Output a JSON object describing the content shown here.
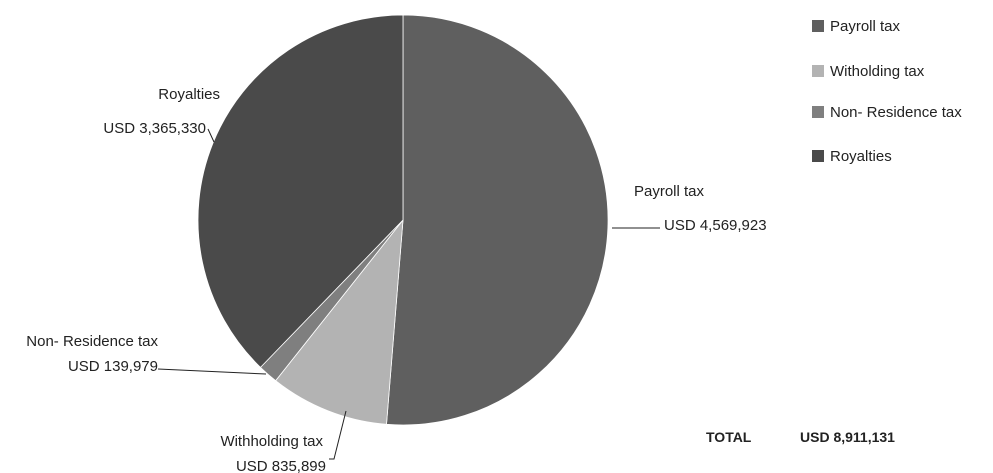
{
  "chart_data": {
    "type": "pie",
    "title": "",
    "slices": [
      {
        "name": "Payroll tax",
        "label": "Payroll tax",
        "value_label": "USD 4,569,923",
        "value": 4569923,
        "color": "#5f5f5f"
      },
      {
        "name": "Witholding tax",
        "label": "Withholding tax",
        "value_label": "USD 835,899",
        "value": 835899,
        "color": "#b3b3b3"
      },
      {
        "name": "Non- Residence tax",
        "label": "Non- Residence tax",
        "value_label": "USD 139,979",
        "value": 139979,
        "color": "#7f7f7f"
      },
      {
        "name": "Royalties",
        "label": "Royalties",
        "value_label": "USD 3,365,330",
        "value": 3365330,
        "color": "#4a4a4a"
      }
    ],
    "legend_position": "top-right",
    "total": {
      "label": "TOTAL",
      "value": "USD 8,911,131"
    }
  }
}
